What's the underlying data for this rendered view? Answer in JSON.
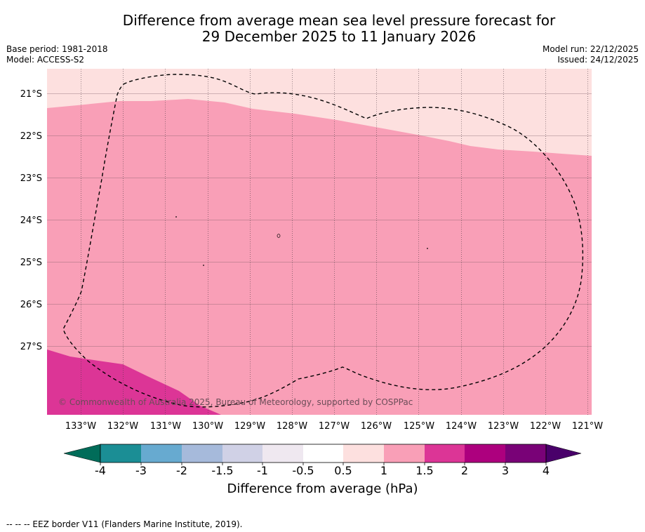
{
  "header": {
    "title_line1": "Difference from average mean sea level pressure forecast for",
    "title_line2": "29 December 2025 to 11 January 2026",
    "base_period": "Base period: 1981-2018",
    "model": "Model: ACCESS-S2",
    "model_run": "Model run: 22/12/2025",
    "issued": "Issued: 24/12/2025"
  },
  "map": {
    "lon_range": [
      -133.8,
      -120.9
    ],
    "lat_range": [
      -28.6,
      -20.4
    ],
    "lat_labels": [
      {
        "value": -21,
        "text": "21°S"
      },
      {
        "value": -22,
        "text": "22°S"
      },
      {
        "value": -23,
        "text": "23°S"
      },
      {
        "value": -24,
        "text": "24°S"
      },
      {
        "value": -25,
        "text": "25°S"
      },
      {
        "value": -26,
        "text": "26°S"
      },
      {
        "value": -27,
        "text": "27°S"
      }
    ],
    "lon_labels": [
      {
        "value": -133,
        "text": "133°W"
      },
      {
        "value": -132,
        "text": "132°W"
      },
      {
        "value": -131,
        "text": "131°W"
      },
      {
        "value": -130,
        "text": "130°W"
      },
      {
        "value": -129,
        "text": "129°W"
      },
      {
        "value": -128,
        "text": "128°W"
      },
      {
        "value": -127,
        "text": "127°W"
      },
      {
        "value": -126,
        "text": "126°W"
      },
      {
        "value": -125,
        "text": "125°W"
      },
      {
        "value": -124,
        "text": "124°W"
      },
      {
        "value": -123,
        "text": "123°W"
      },
      {
        "value": -122,
        "text": "122°W"
      },
      {
        "value": -121,
        "text": "121°W"
      }
    ],
    "copyright": "© Commonwealth of Australia 2025, Bureau of Meteorology, supported by COSPPac",
    "fill_colors": {
      "anomaly_0_5_to_1": "#fde0df",
      "anomaly_1_to_1_5": "#f99fb7",
      "anomaly_1_5_to_2": "#dc3596"
    }
  },
  "colorbar": {
    "label": "Difference from average (hPa)",
    "ticks": [
      "-4",
      "-3",
      "-2",
      "-1.5",
      "-1",
      "-0.5",
      "0.5",
      "1",
      "1.5",
      "2",
      "3",
      "4"
    ],
    "colors": [
      "#1b8e95",
      "#67aad0",
      "#a6badb",
      "#d0d1e6",
      "#efe8f0",
      "#ffffff",
      "#fde0df",
      "#f99fb7",
      "#dc3596",
      "#ad007e",
      "#790277"
    ],
    "under_color": "#016c59",
    "over_color": "#49006a"
  },
  "footer": {
    "legend_text": "--  --  -- EEZ border V11 (Flanders Marine Institute, 2019)."
  }
}
